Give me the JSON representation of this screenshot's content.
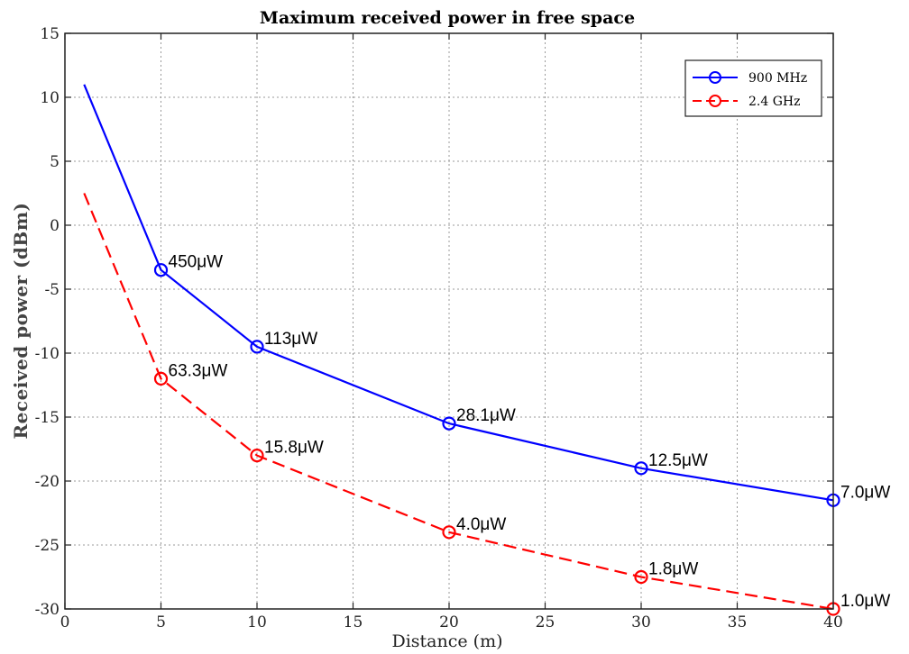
{
  "chart_data": {
    "type": "line",
    "title": "Maximum received power in free space",
    "xlabel": "Distance (m)",
    "ylabel": "Received power (dBm)",
    "xlim": [
      0,
      40
    ],
    "ylim": [
      -30,
      15
    ],
    "xticks": [
      0,
      5,
      10,
      15,
      20,
      25,
      30,
      35,
      40
    ],
    "yticks": [
      15,
      10,
      5,
      0,
      -5,
      -10,
      -15,
      -20,
      -25,
      -30
    ],
    "xtick_labels": [
      "0",
      "5",
      "10",
      "15",
      "20",
      "25",
      "30",
      "35",
      "40"
    ],
    "ytick_labels": [
      "15",
      "10",
      "5",
      "0",
      "-5",
      "-10",
      "-15",
      "-20",
      "-25",
      "-30"
    ],
    "grid": true,
    "legend_position": "top-right",
    "series": [
      {
        "name": "900 MHz",
        "color": "#0000ff",
        "line_style": "solid",
        "marker": "circle",
        "line_points": {
          "x": [
            1,
            5,
            10,
            20,
            30,
            40
          ],
          "y": [
            11,
            -3.5,
            -9.5,
            -15.5,
            -19,
            -21.5
          ]
        },
        "marker_points": {
          "x": [
            5,
            10,
            20,
            30,
            40
          ],
          "y": [
            -3.5,
            -9.5,
            -15.5,
            -19,
            -21.5
          ]
        },
        "data_labels": [
          "450μW",
          "113μW",
          "28.1μW",
          "12.5μW",
          "7.0μW"
        ]
      },
      {
        "name": "2.4 GHz",
        "color": "#ff0000",
        "line_style": "dashed",
        "marker": "circle",
        "line_points": {
          "x": [
            1,
            5,
            10,
            20,
            30,
            40
          ],
          "y": [
            2.5,
            -12,
            -18,
            -24,
            -27.5,
            -30
          ]
        },
        "marker_points": {
          "x": [
            5,
            10,
            20,
            30,
            40
          ],
          "y": [
            -12,
            -18,
            -24,
            -27.5,
            -30
          ]
        },
        "data_labels": [
          "63.3μW",
          "15.8μW",
          "4.0μW",
          "1.8μW",
          "1.0μW"
        ]
      }
    ]
  }
}
